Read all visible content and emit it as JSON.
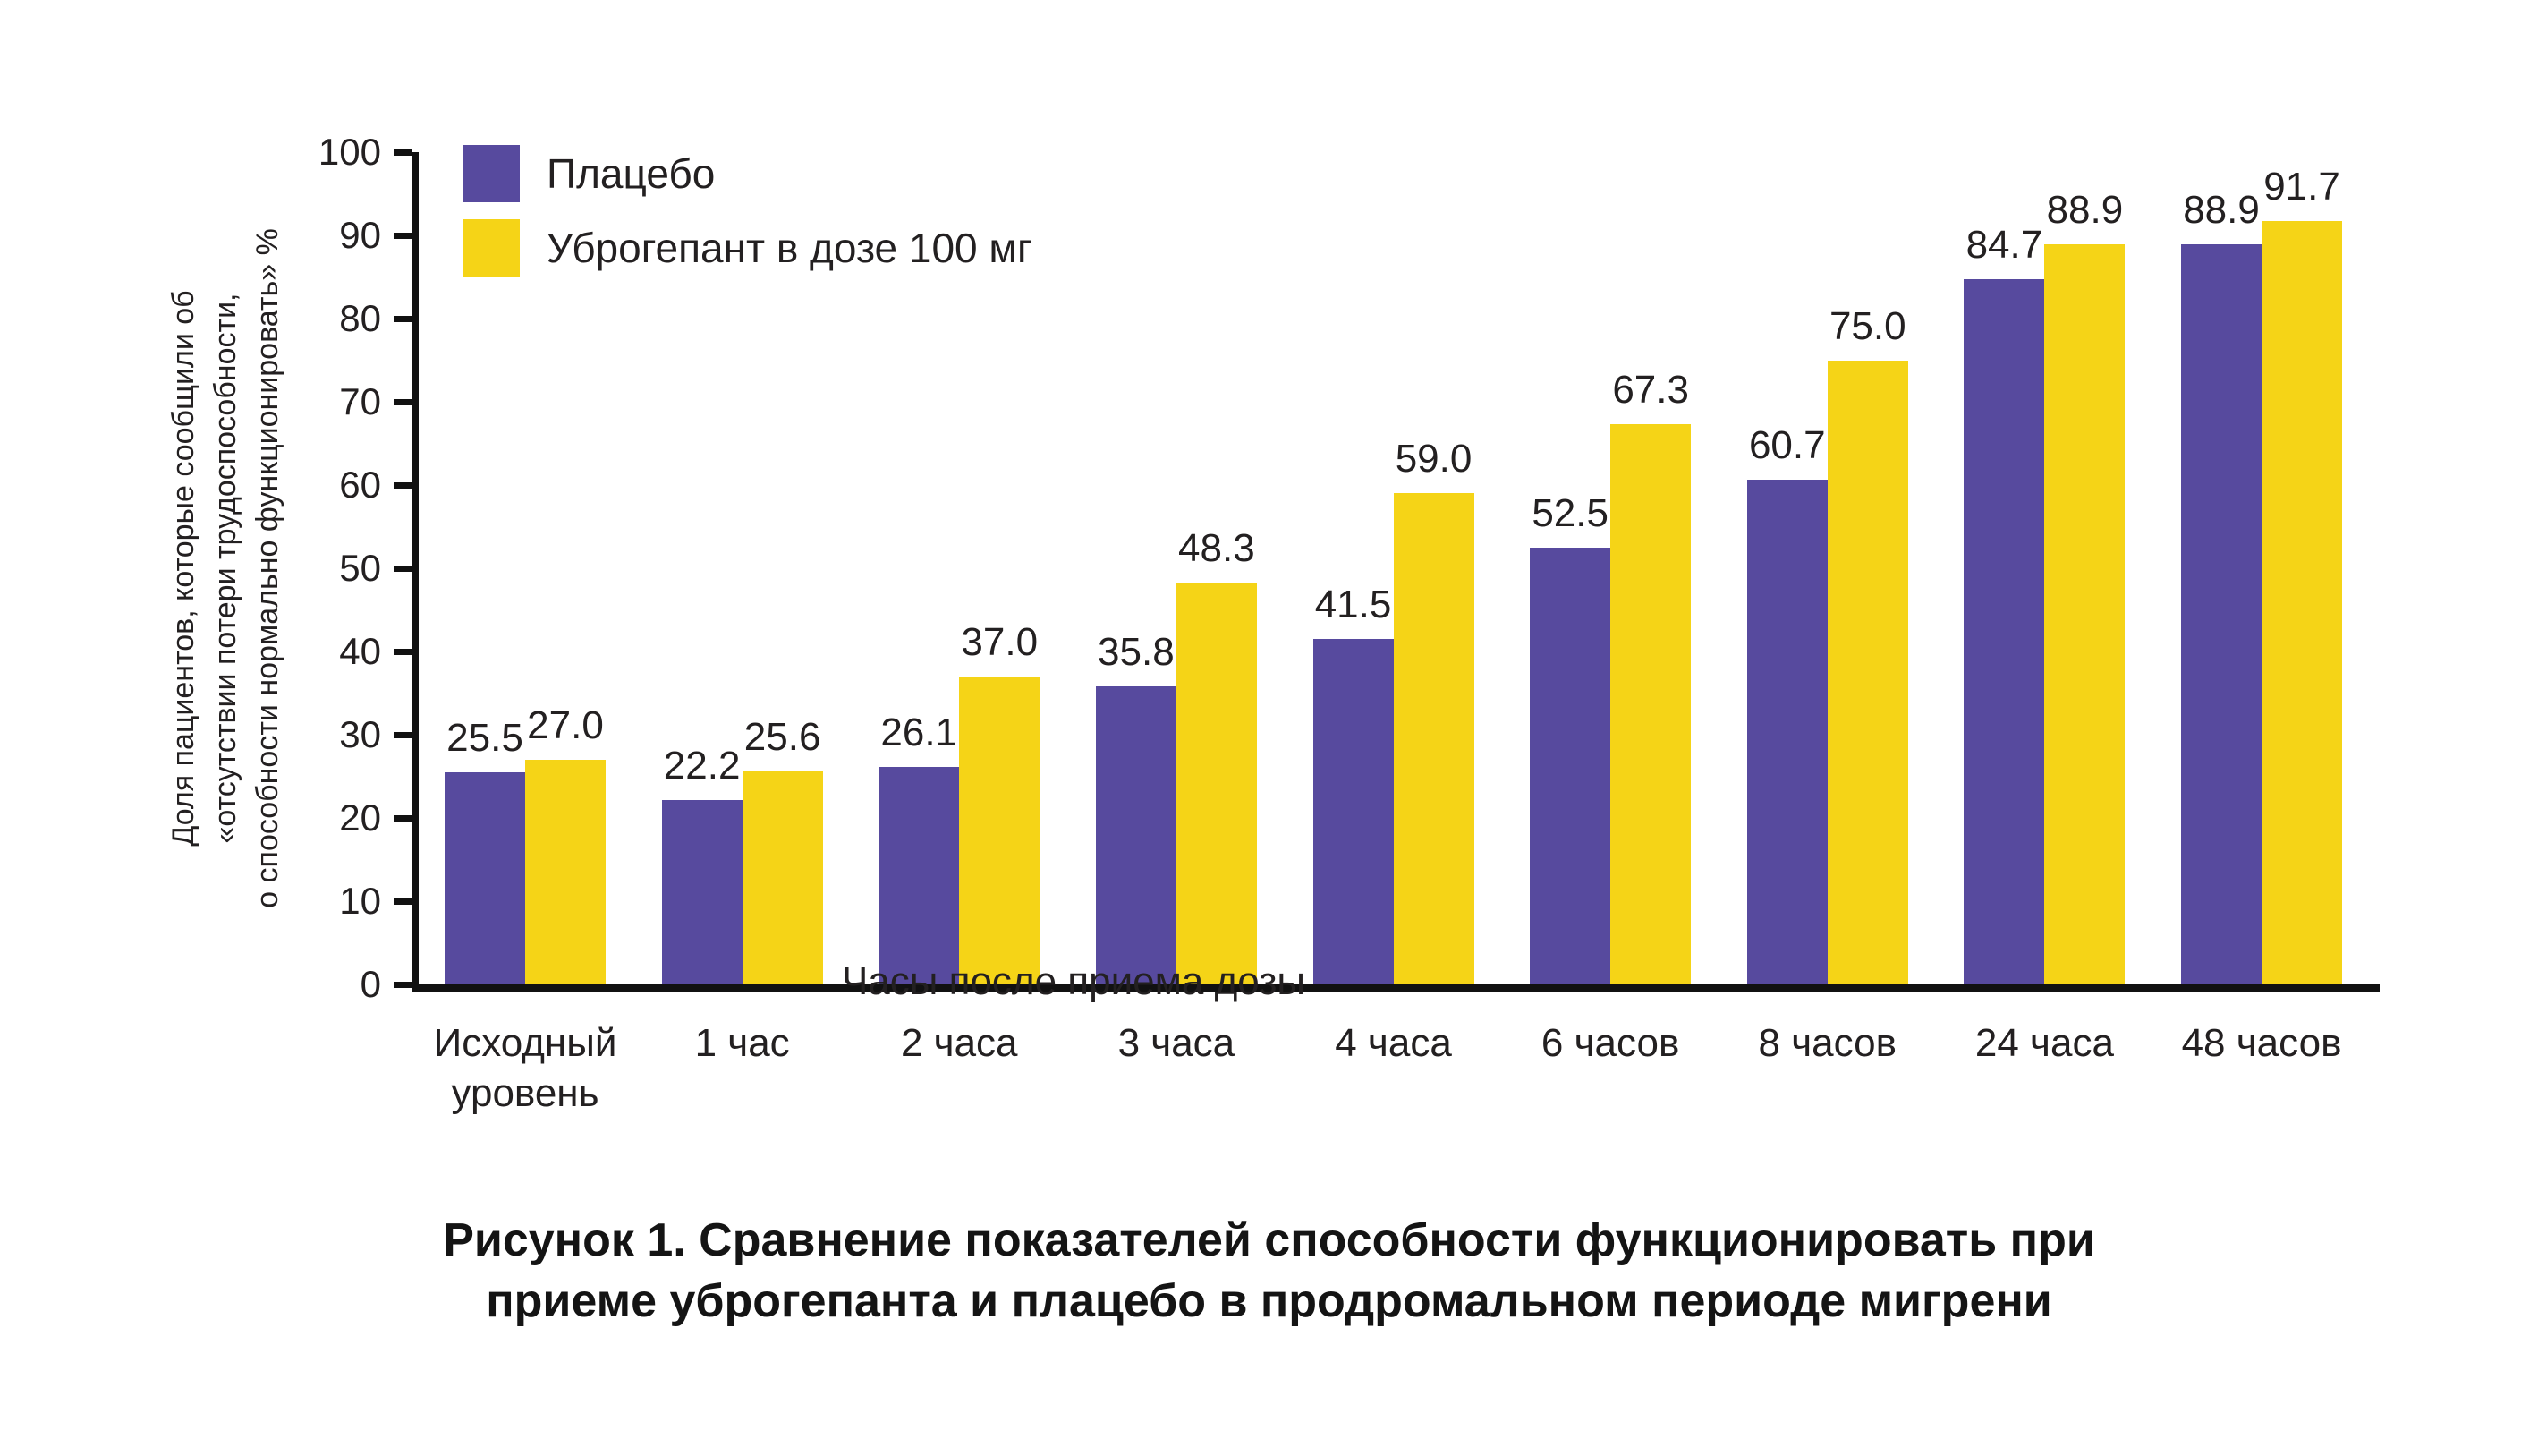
{
  "figure": {
    "caption_line1": "Рисунок 1. Сравнение показателей способности функционировать при",
    "caption_line2": "приеме уброгепанта и плацебо в продромальном периоде мигрени"
  },
  "colors": {
    "placebo": "#574A9E",
    "ubrogepant": "#F5D417",
    "axis": "#111111",
    "text": "#232021"
  },
  "chart_data": {
    "type": "bar",
    "title": "",
    "categories": [
      "Исходный уровень",
      "1 час",
      "2 часа",
      "3 часа",
      "4 часа",
      "6 часов",
      "8 часов",
      "24 часа",
      "48 часов"
    ],
    "series": [
      {
        "name": "Плацебо",
        "color": "#574A9E",
        "values": [
          25.5,
          22.2,
          26.1,
          35.8,
          41.5,
          52.5,
          60.7,
          84.7,
          88.9
        ]
      },
      {
        "name": "Уброгепант в дозе 100 мг",
        "color": "#F5D417",
        "values": [
          27.0,
          25.6,
          37.0,
          48.3,
          59.0,
          67.3,
          75.0,
          88.9,
          91.7
        ]
      }
    ],
    "xlabel": "Часы после приема дозы",
    "ylabel_lines": [
      "Доля пациентов, которые сообщили об",
      "«отсутствии потери трудоспособности,",
      "о способности нормально функционировать» %"
    ],
    "ylim": [
      0,
      100
    ],
    "ytick_step": 10,
    "grid": false,
    "legend_position": "top-left",
    "value_labels": true,
    "value_label_format": "one-decimal"
  }
}
